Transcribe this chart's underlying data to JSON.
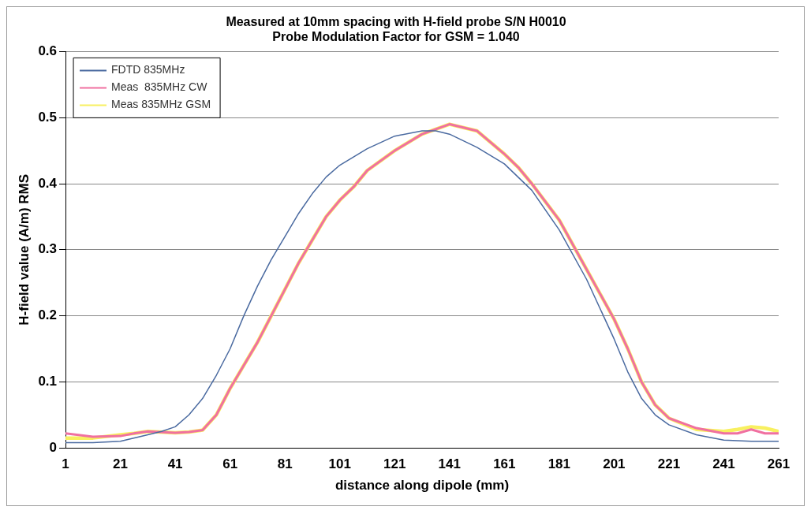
{
  "chart_data": {
    "type": "line",
    "title": [
      "Measured at 10mm spacing with H-field probe S/N H0010",
      "Probe Modulation Factor for GSM = 1.040"
    ],
    "xlabel": "distance along dipole (mm)",
    "ylabel": "H-field value (A/m) RMS",
    "xlim": [
      1,
      261
    ],
    "xticks": [
      1,
      21,
      41,
      61,
      81,
      101,
      121,
      141,
      161,
      181,
      201,
      221,
      241,
      261
    ],
    "ylim": [
      0,
      0.6
    ],
    "yticks": [
      0,
      0.1,
      0.2,
      0.3,
      0.4,
      0.5,
      0.6
    ],
    "grid": "y",
    "legend": "top left",
    "marker": "none",
    "line_style": "solid",
    "series": [
      {
        "name": "FDTD 835MHz",
        "color": "#4a6aa0",
        "x": [
          1,
          11,
          21,
          31,
          36,
          41,
          46,
          51,
          56,
          61,
          66,
          71,
          76,
          81,
          86,
          91,
          96,
          101,
          111,
          121,
          131,
          136,
          141,
          151,
          161,
          171,
          181,
          191,
          201,
          206,
          211,
          216,
          221,
          231,
          241,
          251,
          261
        ],
        "values": [
          0.008,
          0.008,
          0.01,
          0.02,
          0.025,
          0.032,
          0.05,
          0.075,
          0.11,
          0.15,
          0.2,
          0.245,
          0.285,
          0.32,
          0.355,
          0.385,
          0.41,
          0.428,
          0.453,
          0.472,
          0.48,
          0.48,
          0.475,
          0.455,
          0.43,
          0.39,
          0.33,
          0.255,
          0.165,
          0.115,
          0.075,
          0.05,
          0.035,
          0.02,
          0.012,
          0.01,
          0.01
        ]
      },
      {
        "name": "Meas  835MHz CW",
        "color": "#f070a0",
        "x": [
          1,
          11,
          21,
          26,
          31,
          41,
          46,
          51,
          56,
          61,
          66,
          71,
          76,
          81,
          86,
          91,
          96,
          101,
          106,
          111,
          121,
          131,
          141,
          151,
          161,
          166,
          171,
          181,
          191,
          201,
          206,
          211,
          216,
          221,
          231,
          241,
          246,
          251,
          256,
          261
        ],
        "values": [
          0.022,
          0.017,
          0.018,
          0.022,
          0.025,
          0.023,
          0.024,
          0.027,
          0.05,
          0.09,
          0.125,
          0.16,
          0.2,
          0.24,
          0.28,
          0.315,
          0.35,
          0.375,
          0.395,
          0.42,
          0.45,
          0.475,
          0.49,
          0.48,
          0.445,
          0.425,
          0.4,
          0.345,
          0.27,
          0.195,
          0.15,
          0.1,
          0.065,
          0.045,
          0.03,
          0.022,
          0.022,
          0.028,
          0.022,
          0.022
        ]
      },
      {
        "name": "Meas 835MHz GSM",
        "color": "#f8f060",
        "x": [
          1,
          11,
          21,
          26,
          31,
          41,
          46,
          51,
          56,
          61,
          66,
          71,
          76,
          81,
          86,
          91,
          96,
          101,
          106,
          111,
          121,
          131,
          141,
          151,
          161,
          166,
          171,
          181,
          191,
          201,
          206,
          211,
          216,
          221,
          231,
          241,
          246,
          251,
          256,
          261
        ],
        "values": [
          0.015,
          0.015,
          0.02,
          0.022,
          0.025,
          0.023,
          0.024,
          0.027,
          0.05,
          0.09,
          0.125,
          0.16,
          0.2,
          0.24,
          0.28,
          0.315,
          0.35,
          0.375,
          0.395,
          0.42,
          0.45,
          0.475,
          0.49,
          0.48,
          0.445,
          0.425,
          0.4,
          0.345,
          0.27,
          0.195,
          0.15,
          0.1,
          0.065,
          0.045,
          0.028,
          0.025,
          0.028,
          0.032,
          0.03,
          0.025
        ]
      }
    ]
  }
}
